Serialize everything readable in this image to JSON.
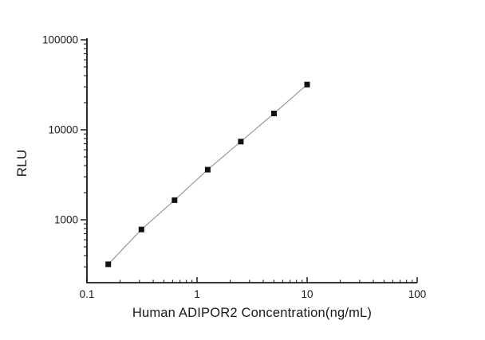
{
  "figure": {
    "background": "#ffffff"
  },
  "chart_data": {
    "type": "line",
    "subtype": "scatter-with-line",
    "title": "",
    "xlabel": "Human ADIPOR2 Concentration(ng/mL)",
    "ylabel": "RLU",
    "x_scale": "log",
    "y_scale": "log",
    "xlim": [
      0.1,
      100
    ],
    "ylim": [
      200,
      100000
    ],
    "x_tick_labels": [
      "0.1",
      "1",
      "10",
      "100"
    ],
    "x_tick_values": [
      0.1,
      1,
      10,
      100
    ],
    "y_tick_labels": [
      "1000",
      "10000",
      "100000"
    ],
    "y_tick_values": [
      1000,
      10000,
      100000
    ],
    "grid": false,
    "legend": "none",
    "axis_color": "#1a1a1a",
    "line_color": "#999999",
    "marker_color": "#111111",
    "marker": "filled-square",
    "points": [
      {
        "x": 0.156,
        "y": 320
      },
      {
        "x": 0.3125,
        "y": 780
      },
      {
        "x": 0.625,
        "y": 1650
      },
      {
        "x": 1.25,
        "y": 3600
      },
      {
        "x": 2.5,
        "y": 7400
      },
      {
        "x": 5,
        "y": 15200
      },
      {
        "x": 10,
        "y": 31800
      }
    ]
  }
}
